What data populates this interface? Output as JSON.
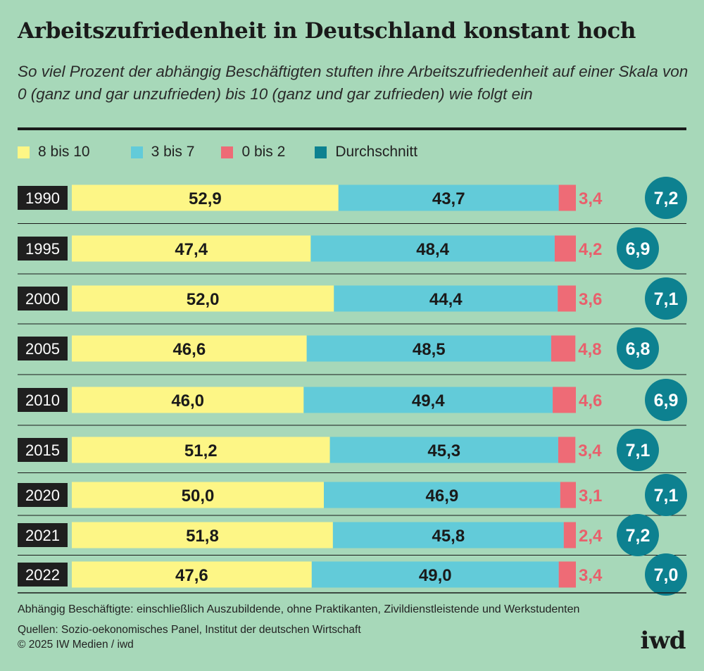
{
  "header": {
    "title": "Arbeitszufriedenheit in Deutschland konstant hoch",
    "subtitle": "So viel Prozent der abhängig Beschäftigten stuften ihre Arbeitszufriedenheit auf einer Skala von 0 (ganz und gar unzufrieden) bis 10 (ganz und gar zufrieden) wie folgt ein"
  },
  "legend": [
    {
      "label": "8 bis 10",
      "color": "#fdf686"
    },
    {
      "label": "3 bis 7",
      "color": "#62cbd9"
    },
    {
      "label": "0 bis 2",
      "color": "#ee6b76"
    },
    {
      "label": "Durchschnitt",
      "color": "#0d8190"
    }
  ],
  "chart_data": {
    "type": "bar",
    "stacked": true,
    "orientation": "horizontal",
    "categories": [
      "1990",
      "1995",
      "2000",
      "2005",
      "2010",
      "2015",
      "2020",
      "2021",
      "2022"
    ],
    "series": [
      {
        "name": "8 bis 10",
        "values": [
          52.9,
          47.4,
          52.0,
          46.6,
          46.0,
          51.2,
          50.0,
          51.8,
          47.6
        ]
      },
      {
        "name": "3 bis 7",
        "values": [
          43.7,
          48.4,
          44.4,
          48.5,
          49.4,
          45.3,
          46.9,
          45.8,
          49.0
        ]
      },
      {
        "name": "0 bis 2",
        "values": [
          3.4,
          4.2,
          3.6,
          4.8,
          4.6,
          3.4,
          3.1,
          2.4,
          3.4
        ]
      }
    ],
    "averages": {
      "name": "Durchschnitt",
      "values": [
        7.2,
        6.9,
        7.1,
        6.8,
        6.9,
        7.1,
        7.1,
        7.2,
        7.0
      ]
    },
    "xlim": [
      0,
      100
    ],
    "colors": {
      "high": "#fdf686",
      "mid": "#62cbd9",
      "low": "#ee6b76",
      "low_label": "#e8606c",
      "avg": "#0d8190",
      "year_box": "#1f1f1f"
    },
    "legend_position": "top-left"
  },
  "footer": {
    "note": "Abhängig Beschäftigte: einschließlich Auszubildende, ohne Praktikanten, Zivildienstleistende und Werkstudenten",
    "source": "Quellen: Sozio-oekonomisches Panel, Institut der deutschen Wirtschaft",
    "copyright": "© 2025 IW Medien / iwd",
    "logo": "iwd"
  }
}
